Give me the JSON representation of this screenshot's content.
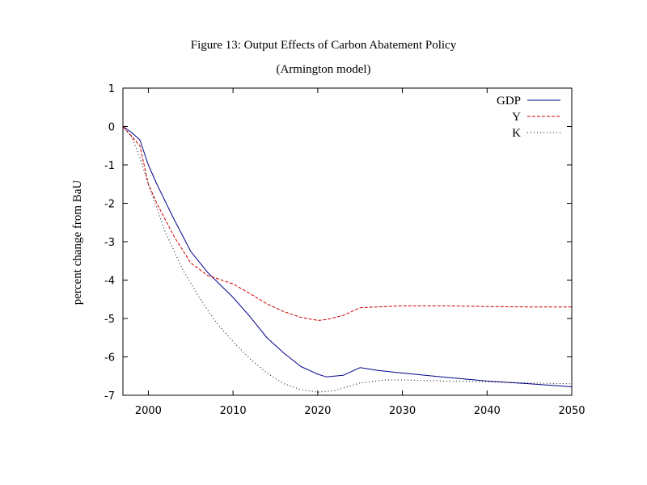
{
  "chart_data": {
    "type": "line",
    "title": "Figure 13: Output Effects of Carbon Abatement Policy",
    "subtitle": "(Armington model)",
    "xlabel": "",
    "ylabel": "percent change from BaU",
    "xlim": [
      1997,
      2050
    ],
    "ylim": [
      -7,
      1
    ],
    "x_ticks": [
      2000,
      2010,
      2020,
      2030,
      2040,
      2050
    ],
    "y_ticks": [
      1,
      0,
      -1,
      -2,
      -3,
      -4,
      -5,
      -6,
      -7
    ],
    "grid": false,
    "legend_position": "top-right",
    "series": [
      {
        "name": "GDP",
        "color": "#00008b",
        "dash": "solid",
        "points": [
          [
            1997,
            0
          ],
          [
            1998,
            -0.15
          ],
          [
            1999,
            -0.35
          ],
          [
            2000,
            -1.0
          ],
          [
            2001,
            -1.5
          ],
          [
            2003,
            -2.4
          ],
          [
            2005,
            -3.25
          ],
          [
            2007,
            -3.8
          ],
          [
            2010,
            -4.45
          ],
          [
            2012,
            -4.95
          ],
          [
            2014,
            -5.5
          ],
          [
            2016,
            -5.9
          ],
          [
            2018,
            -6.25
          ],
          [
            2020,
            -6.45
          ],
          [
            2021,
            -6.52
          ],
          [
            2023,
            -6.48
          ],
          [
            2025,
            -6.28
          ],
          [
            2027,
            -6.35
          ],
          [
            2030,
            -6.42
          ],
          [
            2035,
            -6.53
          ],
          [
            2040,
            -6.63
          ],
          [
            2045,
            -6.7
          ],
          [
            2050,
            -6.78
          ]
        ]
      },
      {
        "name": "Y",
        "color": "#cc0000",
        "dash": "dashed",
        "points": [
          [
            1997,
            0
          ],
          [
            1999,
            -0.5
          ],
          [
            2000,
            -1.5
          ],
          [
            2001,
            -2.0
          ],
          [
            2003,
            -2.85
          ],
          [
            2005,
            -3.55
          ],
          [
            2007,
            -3.88
          ],
          [
            2008,
            -3.95
          ],
          [
            2010,
            -4.1
          ],
          [
            2012,
            -4.35
          ],
          [
            2014,
            -4.62
          ],
          [
            2016,
            -4.82
          ],
          [
            2018,
            -4.97
          ],
          [
            2020,
            -5.05
          ],
          [
            2021,
            -5.03
          ],
          [
            2023,
            -4.92
          ],
          [
            2025,
            -4.72
          ],
          [
            2030,
            -4.67
          ],
          [
            2035,
            -4.67
          ],
          [
            2040,
            -4.69
          ],
          [
            2045,
            -4.7
          ],
          [
            2050,
            -4.7
          ]
        ]
      },
      {
        "name": "K",
        "color": "#000000",
        "dash": "dotted",
        "points": [
          [
            1997,
            0
          ],
          [
            1998,
            -0.25
          ],
          [
            1999,
            -0.8
          ],
          [
            2000,
            -1.5
          ],
          [
            2002,
            -2.75
          ],
          [
            2004,
            -3.7
          ],
          [
            2006,
            -4.45
          ],
          [
            2008,
            -5.1
          ],
          [
            2010,
            -5.6
          ],
          [
            2012,
            -6.05
          ],
          [
            2014,
            -6.42
          ],
          [
            2016,
            -6.7
          ],
          [
            2018,
            -6.85
          ],
          [
            2020,
            -6.92
          ],
          [
            2022,
            -6.88
          ],
          [
            2025,
            -6.68
          ],
          [
            2028,
            -6.6
          ],
          [
            2030,
            -6.6
          ],
          [
            2035,
            -6.63
          ],
          [
            2040,
            -6.65
          ],
          [
            2045,
            -6.68
          ],
          [
            2050,
            -6.7
          ]
        ]
      }
    ]
  }
}
